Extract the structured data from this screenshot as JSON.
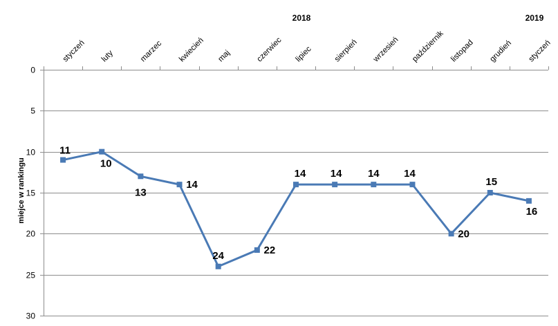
{
  "chart_data": {
    "type": "line",
    "ylabel": "miejce w rankingu",
    "ylim": [
      0,
      30
    ],
    "y_inverted": true,
    "y_ticks": [
      "0",
      "5",
      "10",
      "15",
      "20",
      "25",
      "30"
    ],
    "x_axis_position": "top",
    "year_labels": [
      {
        "label": "2018",
        "category_index": 6
      },
      {
        "label": "2019",
        "category_index": 12
      }
    ],
    "categories": [
      "styczeń",
      "luty",
      "marzec",
      "kwiecień",
      "maj",
      "czerwiec",
      "lipiec",
      "sierpień",
      "wrzesień",
      "październik",
      "listopad",
      "grudień",
      "styczeń"
    ],
    "series": [
      {
        "values": [
          11,
          10,
          13,
          14,
          24,
          22,
          14,
          14,
          14,
          14,
          20,
          15,
          16
        ],
        "color": "#4a7ab5"
      }
    ],
    "grid": true,
    "legend": "none"
  }
}
